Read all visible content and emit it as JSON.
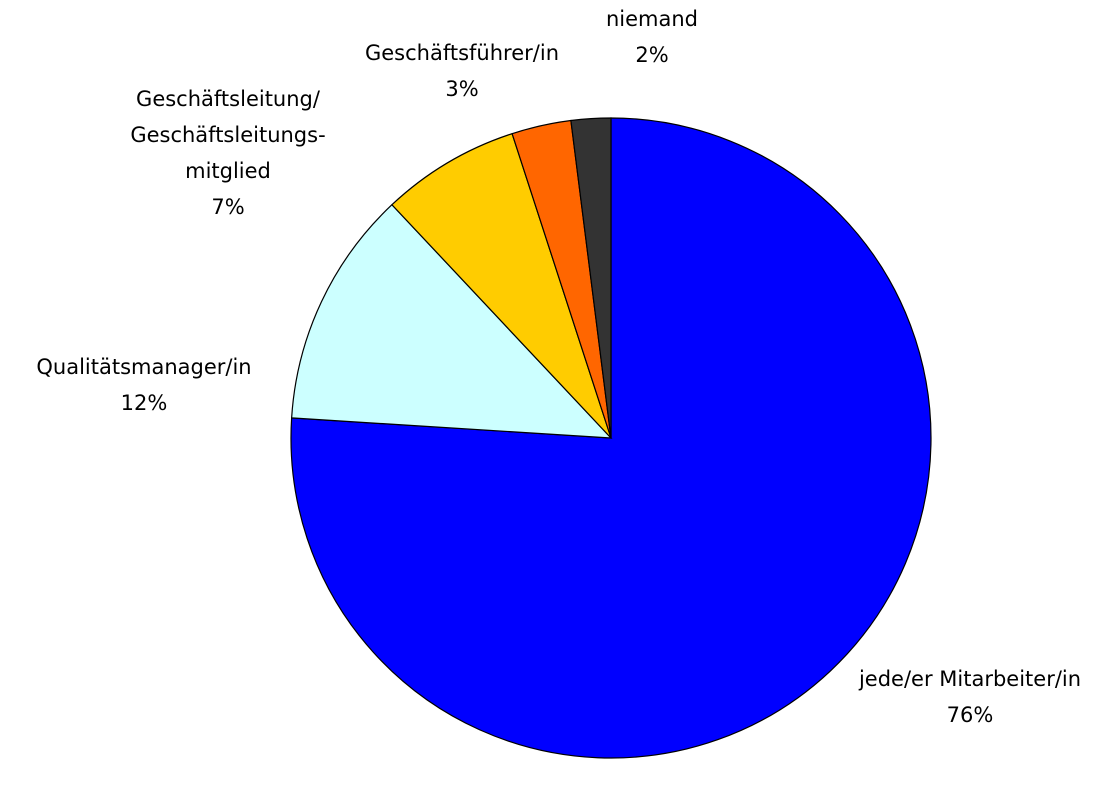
{
  "chart_data": {
    "type": "pie",
    "categories": [
      "jede/er Mitarbeiter/in",
      "Qualitätsmanager/in",
      "Geschäftsleitung/\nGeschäftsleitungs-\nmitglied",
      "Geschäftsführer/in",
      "niemand"
    ],
    "values": [
      76,
      12,
      7,
      3,
      2
    ],
    "value_labels": [
      "76%",
      "12%",
      "7%",
      "3%",
      "2%"
    ],
    "colors": [
      "#0000ff",
      "#ccffff",
      "#ffcc00",
      "#ff6600",
      "#333333"
    ]
  }
}
